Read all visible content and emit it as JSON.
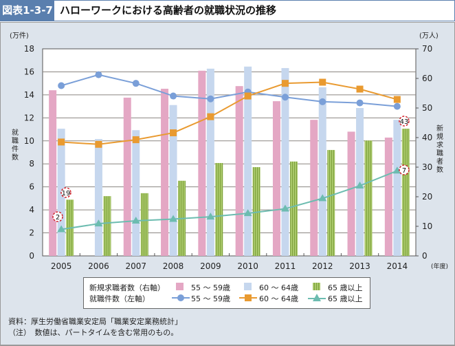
{
  "header": {
    "figure_no": "図表1-3-7",
    "title": "ハローワークにおける高齢者の就職状況の推移"
  },
  "notes": {
    "source": "資料：厚生労働省職業安定局「職業安定業務統計」",
    "note": "（注）　数値は、パートタイムを含む常用のもの。"
  },
  "legend": {
    "bars_label": "新規求職者数（右軸）",
    "lines_label": "就職件数（左軸）",
    "s1": "55 ～ 59歳",
    "s2": "60 ～ 64歳",
    "s3": "65 歳以上"
  },
  "chart_data": {
    "type": "bar+line",
    "categories": [
      "2005",
      "2006",
      "2007",
      "2008",
      "2009",
      "2010",
      "2011",
      "2012",
      "2013",
      "2014"
    ],
    "x_unit": "(年度)",
    "left_axis": {
      "label": "就職件数",
      "unit": "(万件)",
      "ylim": [
        0,
        18
      ],
      "ticks": [
        0,
        2,
        4,
        6,
        8,
        10,
        12,
        14,
        16,
        18
      ]
    },
    "right_axis": {
      "label": "新規求職者数",
      "unit": "(万人)",
      "ylim": [
        0,
        70
      ],
      "ticks": [
        0,
        10,
        20,
        30,
        40,
        50,
        60,
        70
      ]
    },
    "grid": true,
    "bar_series": [
      {
        "name": "55 ～ 59歳",
        "axis": "right",
        "color": "#e4a7c4",
        "values": [
          56,
          null,
          53.5,
          56.5,
          62.6,
          57.4,
          52.3,
          46,
          42,
          40
        ]
      },
      {
        "name": "60 ～ 64歳",
        "axis": "right",
        "color": "#c6d7ee",
        "values": [
          43,
          39.5,
          42.5,
          51,
          63.3,
          64,
          63.5,
          57,
          50,
          46
        ]
      },
      {
        "name": "65 歳以上",
        "axis": "right",
        "color": "#a9c86a",
        "values": [
          19,
          20.2,
          21.2,
          25.4,
          31.4,
          30,
          31.9,
          35.8,
          39,
          43
        ]
      }
    ],
    "line_series": [
      {
        "name": "55 ～ 59歳",
        "axis": "left",
        "color": "#7a9fd8",
        "marker": "circle",
        "values": [
          14.8,
          15.75,
          15.0,
          13.9,
          13.65,
          14.25,
          13.8,
          13.4,
          13.3,
          13.0
        ]
      },
      {
        "name": "60 ～ 64歳",
        "axis": "left",
        "color": "#e99a30",
        "marker": "square",
        "values": [
          9.9,
          9.7,
          10.1,
          10.7,
          12.1,
          13.9,
          15.0,
          15.1,
          14.5,
          13.6
        ]
      },
      {
        "name": "65 歳以上",
        "axis": "left",
        "color": "#6cbcb0",
        "marker": "triangle",
        "values": [
          2.3,
          2.8,
          3.05,
          3.2,
          3.4,
          3.7,
          4.1,
          5.0,
          6.1,
          7.4
        ]
      }
    ],
    "annotations": [
      {
        "label": "19",
        "year": "2005"
      },
      {
        "label": "2",
        "year": "2005"
      },
      {
        "label": "43",
        "year": "2014"
      },
      {
        "label": "7",
        "year": "2014"
      }
    ]
  }
}
